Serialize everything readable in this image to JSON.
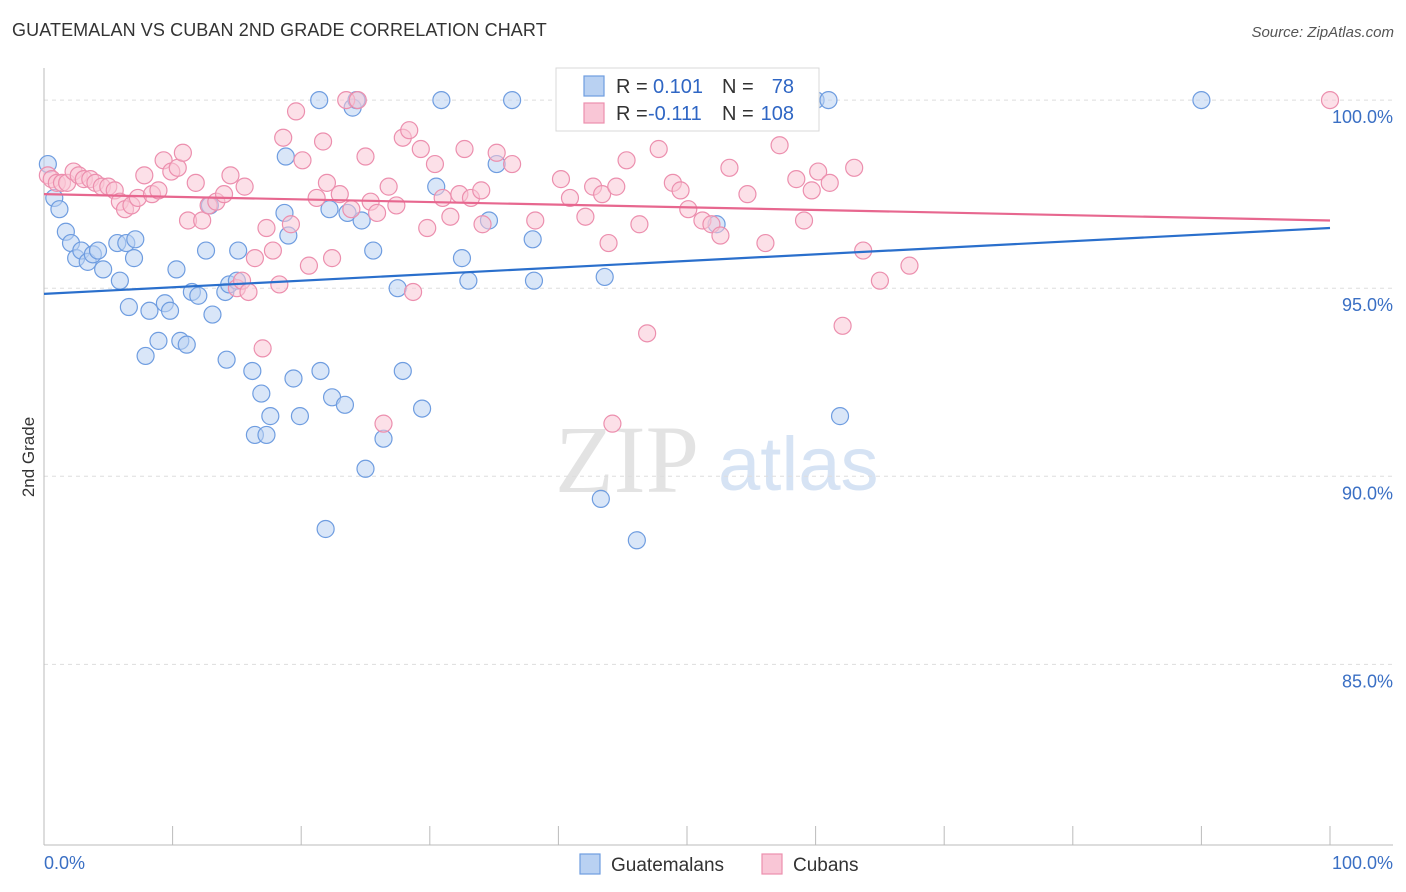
{
  "header": {
    "title": "GUATEMALAN VS CUBAN 2ND GRADE CORRELATION CHART",
    "source": "Source: ZipAtlas.com"
  },
  "watermark": {
    "zip": "ZIP",
    "atlas": "atlas"
  },
  "legend": {
    "r_label": "R =",
    "n_label": "N =",
    "guatemalans": {
      "r": "0.101",
      "n": "78"
    },
    "cubans": {
      "r": "-0.111",
      "n": "108"
    }
  },
  "colors": {
    "guatemalans_fill": "#b9d1f2",
    "guatemalans_stroke": "#6f9de0",
    "guatemalans_line": "#2a6fcc",
    "cubans_fill": "#f9c6d6",
    "cubans_stroke": "#ec8fae",
    "cubans_line": "#e7678f",
    "tick_label": "#3a6fc4"
  },
  "chart_data": {
    "type": "scatter",
    "title": "GUATEMALAN VS CUBAN 2ND GRADE CORRELATION CHART",
    "xlabel": "",
    "ylabel": "2nd Grade",
    "xlim": [
      0,
      100
    ],
    "ylim": [
      80.2,
      100.8
    ],
    "x_tick_labels": [
      "0.0%",
      "100.0%"
    ],
    "y_ticks": [
      {
        "value": 100,
        "label": "100.0%"
      },
      {
        "value": 95,
        "label": "95.0%"
      },
      {
        "value": 90,
        "label": "90.0%"
      },
      {
        "value": 85,
        "label": "85.0%"
      }
    ],
    "grid": "horizontal dashed",
    "legend_position": "top-center",
    "series": [
      {
        "name": "Guatemalans",
        "trend": {
          "x": [
            0,
            100
          ],
          "y": [
            94.85,
            96.6
          ]
        },
        "points": [
          [
            0.3,
            98.3
          ],
          [
            0.8,
            97.4
          ],
          [
            1.2,
            97.1
          ],
          [
            1.7,
            96.5
          ],
          [
            2.1,
            96.2
          ],
          [
            2.5,
            95.8
          ],
          [
            2.9,
            96.0
          ],
          [
            3.4,
            95.7
          ],
          [
            3.8,
            95.9
          ],
          [
            4.2,
            96.0
          ],
          [
            4.6,
            95.5
          ],
          [
            5.7,
            96.2
          ],
          [
            6.4,
            96.2
          ],
          [
            5.9,
            95.2
          ],
          [
            7.1,
            96.3
          ],
          [
            7.0,
            95.8
          ],
          [
            6.6,
            94.5
          ],
          [
            8.2,
            94.4
          ],
          [
            9.4,
            94.6
          ],
          [
            9.8,
            94.4
          ],
          [
            10.3,
            95.5
          ],
          [
            11.5,
            94.9
          ],
          [
            12.0,
            94.8
          ],
          [
            12.6,
            96.0
          ],
          [
            12.9,
            97.2
          ],
          [
            13.1,
            94.3
          ],
          [
            14.1,
            94.9
          ],
          [
            14.4,
            95.1
          ],
          [
            15.1,
            96.0
          ],
          [
            15.0,
            95.2
          ],
          [
            8.9,
            93.6
          ],
          [
            7.9,
            93.2
          ],
          [
            10.6,
            93.6
          ],
          [
            11.1,
            93.5
          ],
          [
            14.2,
            93.1
          ],
          [
            16.2,
            92.8
          ],
          [
            16.9,
            92.2
          ],
          [
            17.6,
            91.6
          ],
          [
            16.4,
            91.1
          ],
          [
            17.3,
            91.1
          ],
          [
            19.4,
            92.6
          ],
          [
            19.9,
            91.6
          ],
          [
            21.5,
            92.8
          ],
          [
            22.4,
            92.1
          ],
          [
            23.4,
            91.9
          ],
          [
            21.9,
            88.6
          ],
          [
            25.0,
            90.2
          ],
          [
            26.4,
            91.0
          ],
          [
            27.9,
            92.8
          ],
          [
            29.4,
            91.8
          ],
          [
            18.7,
            97.0
          ],
          [
            19.0,
            96.4
          ],
          [
            18.8,
            98.5
          ],
          [
            21.4,
            100.0
          ],
          [
            24.0,
            99.8
          ],
          [
            24.3,
            100.0
          ],
          [
            22.2,
            97.1
          ],
          [
            23.6,
            97.0
          ],
          [
            24.7,
            96.8
          ],
          [
            25.6,
            96.0
          ],
          [
            27.5,
            95.0
          ],
          [
            30.9,
            100.0
          ],
          [
            30.5,
            97.7
          ],
          [
            32.5,
            95.8
          ],
          [
            33.0,
            95.2
          ],
          [
            34.6,
            96.8
          ],
          [
            35.2,
            98.3
          ],
          [
            36.4,
            100.0
          ],
          [
            38.0,
            96.3
          ],
          [
            38.1,
            95.2
          ],
          [
            43.6,
            95.3
          ],
          [
            43.3,
            89.4
          ],
          [
            46.1,
            88.3
          ],
          [
            52.3,
            96.7
          ],
          [
            60.0,
            100.0
          ],
          [
            61.0,
            100.0
          ],
          [
            61.9,
            91.6
          ],
          [
            90.0,
            100.0
          ]
        ]
      },
      {
        "name": "Cubans",
        "trend": {
          "x": [
            0,
            100
          ],
          "y": [
            97.5,
            96.8
          ]
        },
        "points": [
          [
            0.3,
            98.0
          ],
          [
            0.6,
            97.9
          ],
          [
            1.0,
            97.8
          ],
          [
            1.4,
            97.8
          ],
          [
            1.8,
            97.8
          ],
          [
            2.3,
            98.1
          ],
          [
            2.7,
            98.0
          ],
          [
            3.1,
            97.9
          ],
          [
            3.6,
            97.9
          ],
          [
            4.0,
            97.8
          ],
          [
            4.5,
            97.7
          ],
          [
            5.0,
            97.7
          ],
          [
            5.5,
            97.6
          ],
          [
            5.9,
            97.3
          ],
          [
            6.3,
            97.1
          ],
          [
            6.8,
            97.2
          ],
          [
            7.3,
            97.4
          ],
          [
            7.8,
            98.0
          ],
          [
            8.4,
            97.5
          ],
          [
            8.9,
            97.6
          ],
          [
            9.3,
            98.4
          ],
          [
            9.9,
            98.1
          ],
          [
            10.4,
            98.2
          ],
          [
            10.8,
            98.6
          ],
          [
            11.2,
            96.8
          ],
          [
            11.8,
            97.8
          ],
          [
            12.3,
            96.8
          ],
          [
            12.8,
            97.2
          ],
          [
            13.4,
            97.3
          ],
          [
            14.0,
            97.5
          ],
          [
            14.5,
            98.0
          ],
          [
            15.0,
            95.0
          ],
          [
            15.4,
            95.2
          ],
          [
            15.6,
            97.7
          ],
          [
            15.9,
            94.9
          ],
          [
            16.4,
            95.8
          ],
          [
            17.0,
            93.4
          ],
          [
            17.3,
            96.6
          ],
          [
            17.8,
            96.0
          ],
          [
            18.3,
            95.1
          ],
          [
            18.6,
            99.0
          ],
          [
            19.2,
            96.7
          ],
          [
            19.6,
            99.7
          ],
          [
            20.1,
            98.4
          ],
          [
            20.6,
            95.6
          ],
          [
            21.2,
            97.4
          ],
          [
            21.7,
            98.9
          ],
          [
            22.0,
            97.8
          ],
          [
            22.4,
            95.8
          ],
          [
            23.0,
            97.5
          ],
          [
            23.5,
            100.0
          ],
          [
            23.9,
            97.1
          ],
          [
            24.4,
            100.0
          ],
          [
            25.0,
            98.5
          ],
          [
            25.4,
            97.3
          ],
          [
            25.9,
            97.0
          ],
          [
            26.4,
            91.4
          ],
          [
            26.8,
            97.7
          ],
          [
            27.4,
            97.2
          ],
          [
            27.9,
            99.0
          ],
          [
            28.4,
            99.2
          ],
          [
            28.7,
            94.9
          ],
          [
            29.3,
            98.7
          ],
          [
            29.8,
            96.6
          ],
          [
            30.4,
            98.3
          ],
          [
            31.0,
            97.4
          ],
          [
            31.6,
            96.9
          ],
          [
            32.3,
            97.5
          ],
          [
            32.7,
            98.7
          ],
          [
            33.2,
            97.4
          ],
          [
            34.0,
            97.6
          ],
          [
            34.1,
            96.7
          ],
          [
            35.2,
            98.6
          ],
          [
            36.4,
            98.3
          ],
          [
            38.2,
            96.8
          ],
          [
            40.2,
            97.9
          ],
          [
            40.9,
            97.4
          ],
          [
            42.1,
            96.9
          ],
          [
            42.7,
            97.7
          ],
          [
            43.4,
            97.5
          ],
          [
            43.9,
            96.2
          ],
          [
            44.2,
            91.4
          ],
          [
            44.5,
            97.7
          ],
          [
            45.3,
            98.4
          ],
          [
            46.3,
            96.7
          ],
          [
            46.9,
            93.8
          ],
          [
            47.8,
            98.7
          ],
          [
            48.9,
            97.8
          ],
          [
            49.5,
            97.6
          ],
          [
            50.1,
            97.1
          ],
          [
            51.2,
            96.8
          ],
          [
            51.9,
            96.7
          ],
          [
            52.6,
            96.4
          ],
          [
            53.3,
            98.2
          ],
          [
            54.7,
            97.5
          ],
          [
            56.1,
            96.2
          ],
          [
            57.2,
            98.8
          ],
          [
            58.5,
            97.9
          ],
          [
            59.1,
            96.8
          ],
          [
            59.7,
            97.6
          ],
          [
            60.2,
            98.1
          ],
          [
            61.1,
            97.8
          ],
          [
            62.1,
            94.0
          ],
          [
            63.0,
            98.2
          ],
          [
            63.7,
            96.0
          ],
          [
            65.0,
            95.2
          ],
          [
            67.3,
            95.6
          ],
          [
            100.0,
            100.0
          ]
        ]
      }
    ]
  }
}
